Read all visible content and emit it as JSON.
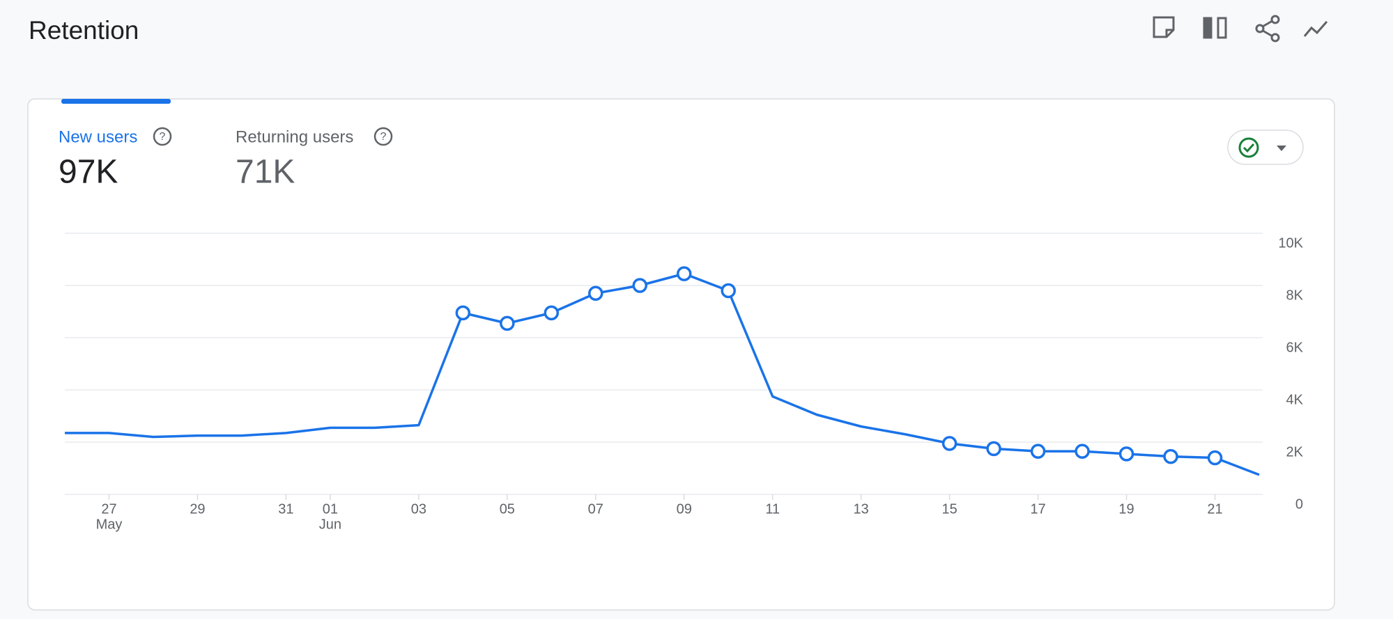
{
  "header": {
    "title": "Retention"
  },
  "tabs": [
    {
      "label": "New users",
      "value": "97K"
    },
    {
      "label": "Returning users",
      "value": "71K"
    }
  ],
  "chart_data": {
    "type": "line",
    "categories": [
      null,
      "27",
      null,
      "29",
      null,
      "31",
      "01",
      null,
      "03",
      null,
      "05",
      null,
      "07",
      null,
      "09",
      null,
      "11",
      null,
      "13",
      null,
      "15",
      null,
      "17",
      null,
      "19",
      null,
      "21",
      null
    ],
    "month_labels": [
      null,
      "May",
      null,
      null,
      null,
      null,
      "Jun",
      null,
      null,
      null,
      null,
      null,
      null,
      null,
      null,
      null,
      null,
      null,
      null,
      null,
      null,
      null,
      null,
      null,
      null,
      null,
      null,
      null
    ],
    "series": [
      {
        "color": "#1a73e8",
        "values": [
          2350,
          2350,
          2200,
          2250,
          2250,
          2350,
          2550,
          2550,
          2650,
          6950,
          6550,
          6950,
          7700,
          8000,
          8450,
          7800,
          3750,
          3050,
          2600,
          2300,
          1950,
          1750,
          1650,
          1650,
          1550,
          1450,
          1400,
          750
        ],
        "markers": [
          false,
          false,
          false,
          false,
          false,
          false,
          false,
          false,
          false,
          true,
          true,
          true,
          true,
          true,
          true,
          true,
          false,
          false,
          false,
          false,
          true,
          true,
          true,
          true,
          true,
          true,
          true,
          false
        ]
      }
    ],
    "ylim": [
      0,
      10000
    ],
    "yticks": [
      0,
      {
        "value": 2000,
        "label": "2K"
      },
      {
        "value": 4000,
        "label": "4K"
      },
      {
        "value": 6000,
        "label": "6K"
      },
      {
        "value": 8000,
        "label": "8K"
      },
      {
        "value": 10000,
        "label": "10K"
      }
    ],
    "grid": true
  }
}
